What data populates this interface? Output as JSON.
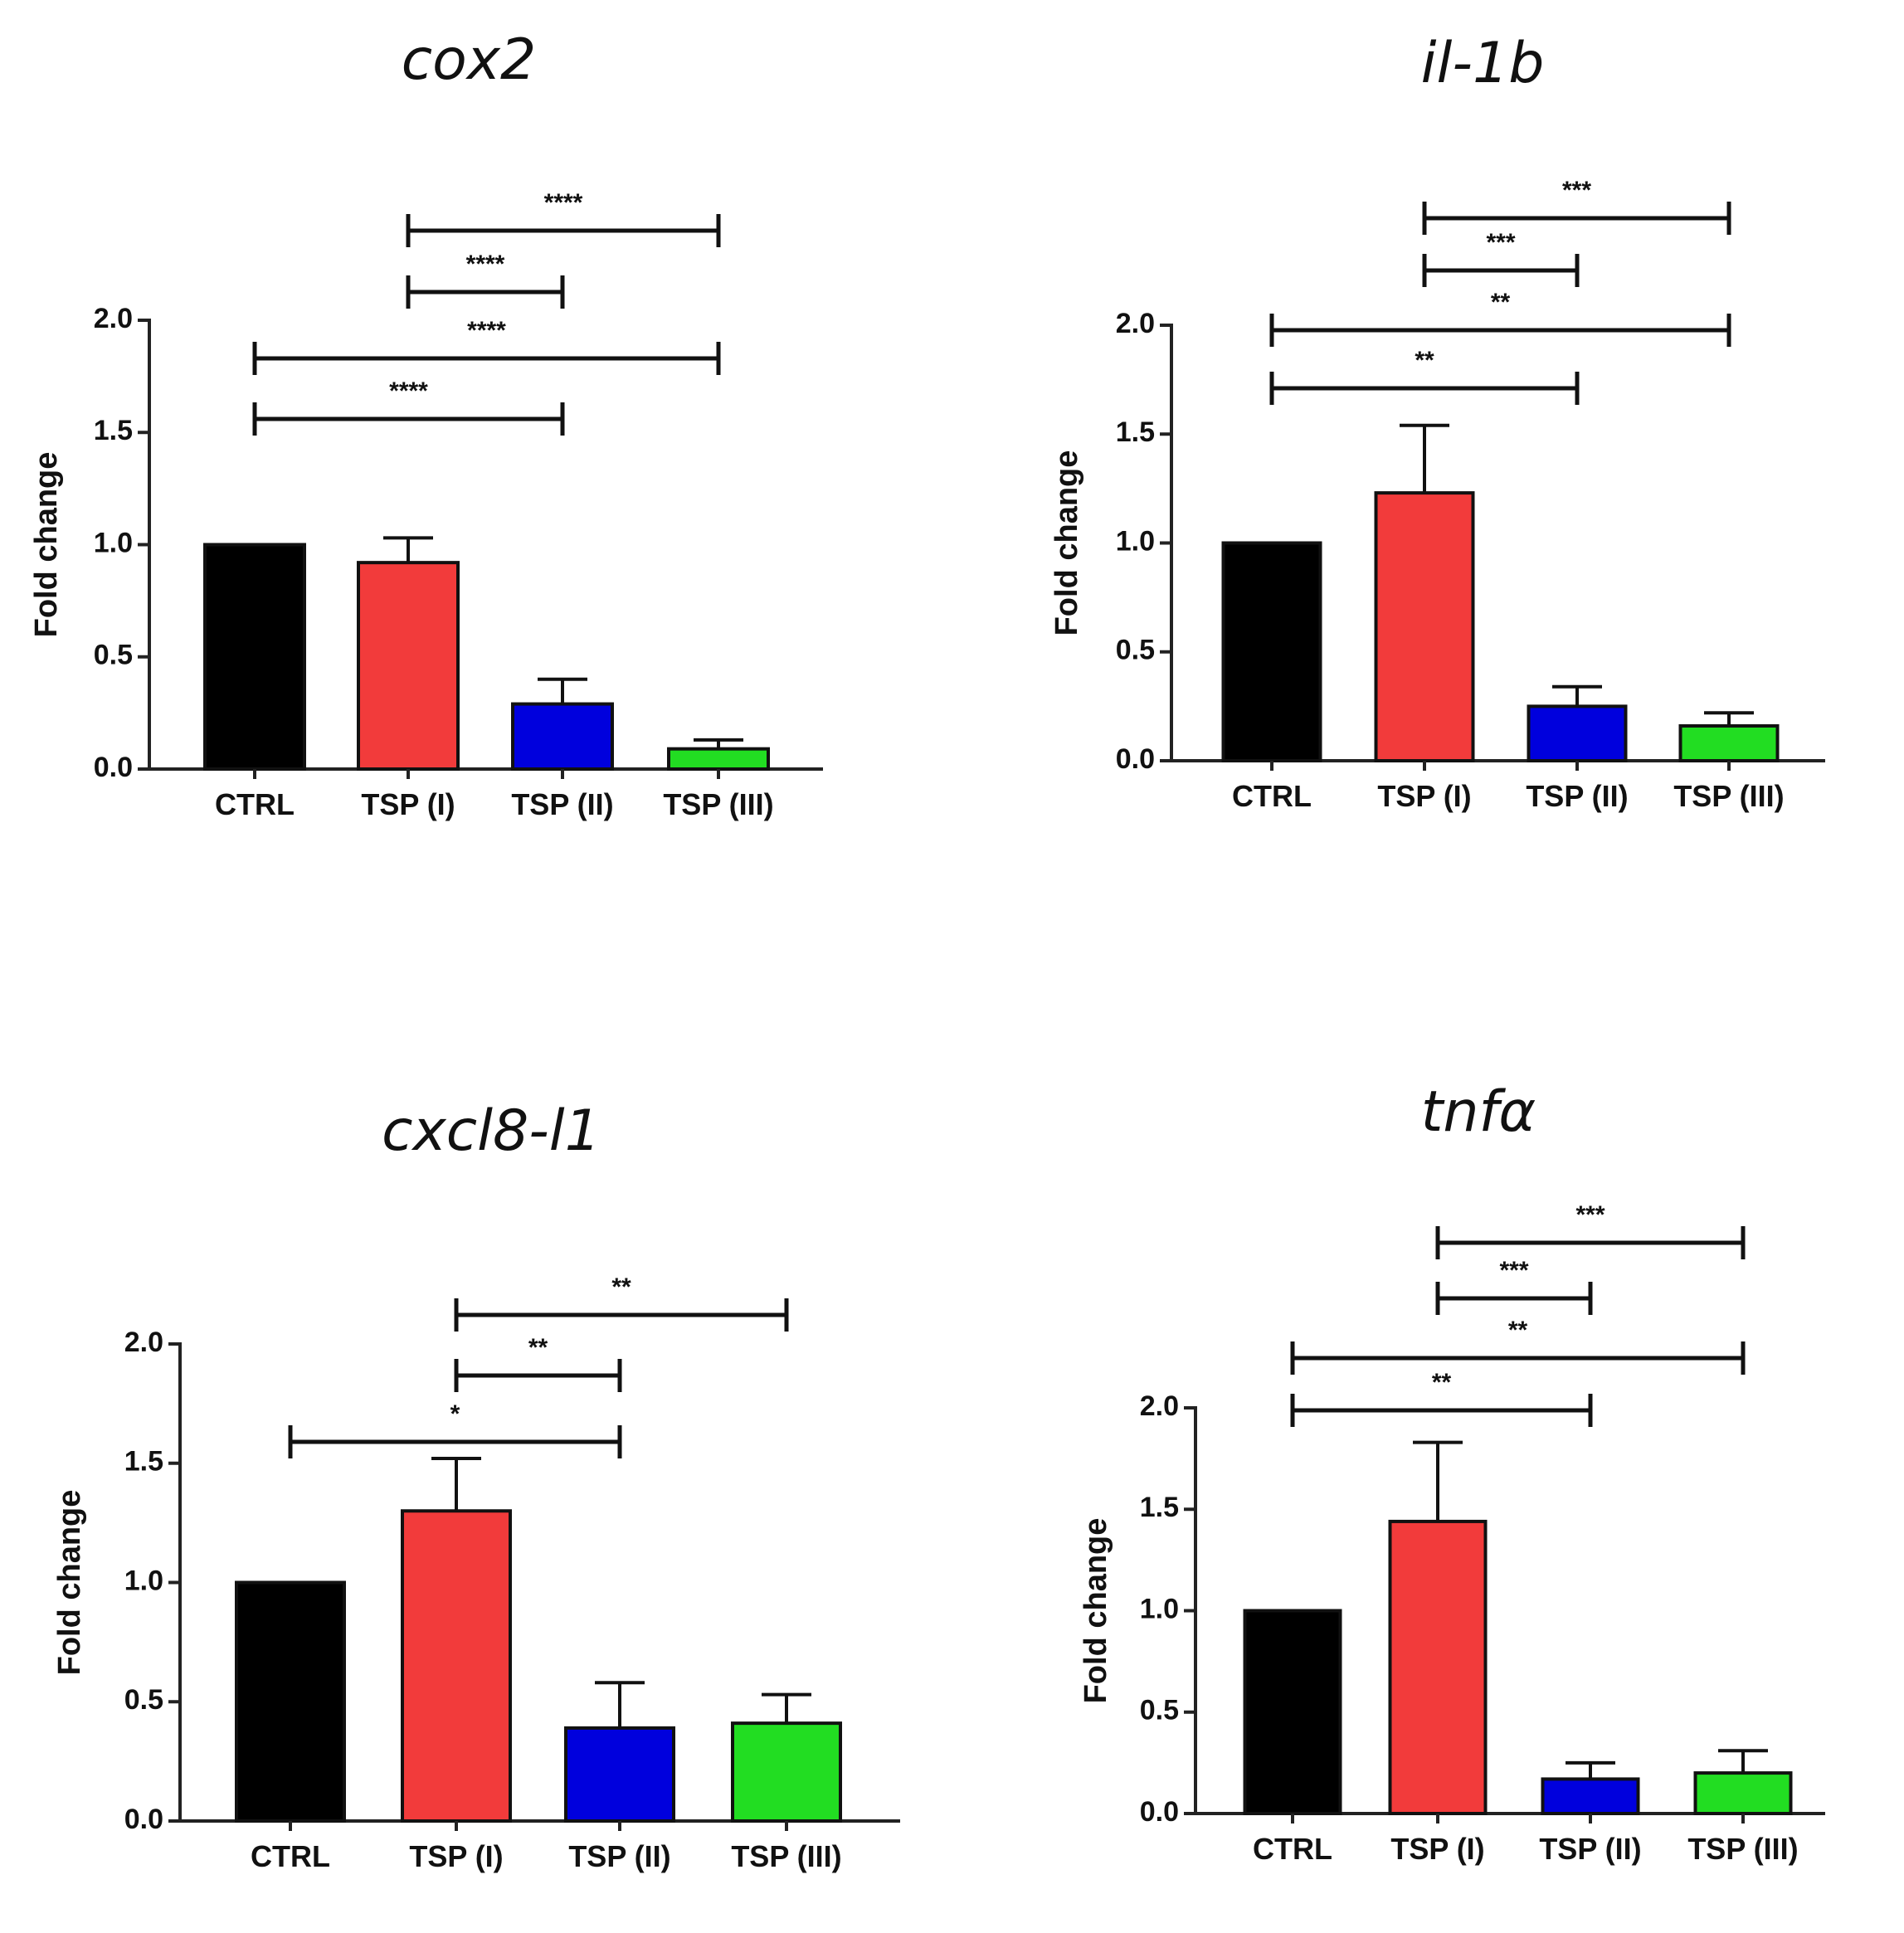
{
  "chart_data": [
    {
      "type": "bar",
      "title": "cox2",
      "ylabel": "Fold change",
      "xlabel": "",
      "ylim": [
        0,
        2.0
      ],
      "yticks": [
        "0.0",
        "0.5",
        "1.0",
        "1.5",
        "2.0"
      ],
      "categories": [
        "CTRL",
        "TSP (I)",
        "TSP (II)",
        "TSP (III)"
      ],
      "values": [
        1.0,
        0.92,
        0.29,
        0.09
      ],
      "errors": [
        0.0,
        0.11,
        0.11,
        0.04
      ],
      "colors": [
        "#000000",
        "#f23b3b",
        "#0000dd",
        "#22dd22"
      ],
      "significance": [
        {
          "from": 1,
          "to": 3,
          "label": "****"
        },
        {
          "from": 1,
          "to": 2,
          "label": "****"
        },
        {
          "from": 0,
          "to": 3,
          "label": "****"
        },
        {
          "from": 0,
          "to": 2,
          "label": "****"
        }
      ]
    },
    {
      "type": "bar",
      "title": "il-1b",
      "ylabel": "Fold change",
      "xlabel": "",
      "ylim": [
        0,
        2.0
      ],
      "yticks": [
        "0.0",
        "0.5",
        "1.0",
        "1.5",
        "2.0"
      ],
      "categories": [
        "CTRL",
        "TSP (I)",
        "TSP (II)",
        "TSP (III)"
      ],
      "values": [
        1.0,
        1.23,
        0.25,
        0.16
      ],
      "errors": [
        0.0,
        0.31,
        0.09,
        0.06
      ],
      "colors": [
        "#000000",
        "#f23b3b",
        "#0000dd",
        "#22dd22"
      ],
      "significance": [
        {
          "from": 1,
          "to": 3,
          "label": "***"
        },
        {
          "from": 1,
          "to": 2,
          "label": "***"
        },
        {
          "from": 0,
          "to": 3,
          "label": "**"
        },
        {
          "from": 0,
          "to": 2,
          "label": "**"
        }
      ]
    },
    {
      "type": "bar",
      "title": "cxcl8-l1",
      "ylabel": "Fold change",
      "xlabel": "",
      "ylim": [
        0,
        2.0
      ],
      "yticks": [
        "0.0",
        "0.5",
        "1.0",
        "1.5",
        "2.0"
      ],
      "categories": [
        "CTRL",
        "TSP (I)",
        "TSP (II)",
        "TSP (III)"
      ],
      "values": [
        1.0,
        1.3,
        0.39,
        0.41
      ],
      "errors": [
        0.0,
        0.22,
        0.19,
        0.12
      ],
      "colors": [
        "#000000",
        "#f23b3b",
        "#0000dd",
        "#22dd22"
      ],
      "significance": [
        {
          "from": 1,
          "to": 3,
          "label": "**"
        },
        {
          "from": 1,
          "to": 2,
          "label": "**"
        },
        {
          "from": 0,
          "to": 2,
          "label": "*"
        }
      ]
    },
    {
      "type": "bar",
      "title": "tnfα",
      "ylabel": "Fold change",
      "xlabel": "",
      "ylim": [
        0,
        2.0
      ],
      "yticks": [
        "0.0",
        "0.5",
        "1.0",
        "1.5",
        "2.0"
      ],
      "categories": [
        "CTRL",
        "TSP (I)",
        "TSP (II)",
        "TSP (III)"
      ],
      "values": [
        1.0,
        1.44,
        0.17,
        0.2
      ],
      "errors": [
        0.0,
        0.39,
        0.08,
        0.11
      ],
      "colors": [
        "#000000",
        "#f23b3b",
        "#0000dd",
        "#22dd22"
      ],
      "significance": [
        {
          "from": 1,
          "to": 3,
          "label": "***"
        },
        {
          "from": 1,
          "to": 2,
          "label": "***"
        },
        {
          "from": 0,
          "to": 3,
          "label": "**"
        },
        {
          "from": 0,
          "to": 2,
          "label": "**"
        }
      ]
    }
  ]
}
